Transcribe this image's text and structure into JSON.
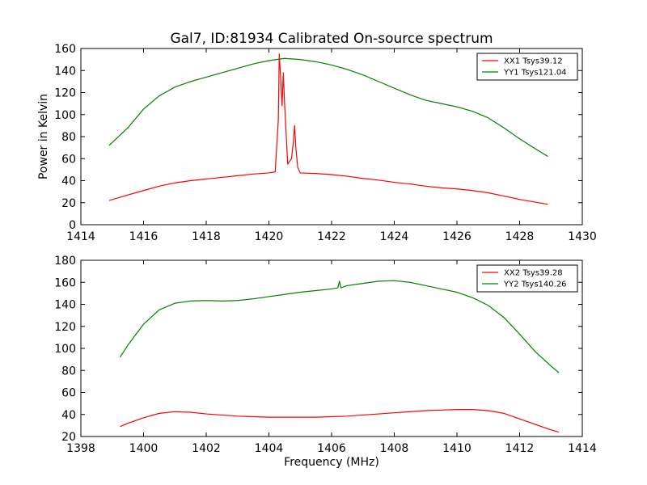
{
  "title": "Gal7, ID:81934 Calibrated On-source spectrum",
  "ylabel": "Power in Kelvin",
  "xlabel": "Frequency (MHz)",
  "colors": {
    "red": "#ff0000",
    "green": "#008000"
  },
  "chart_data": [
    {
      "type": "line",
      "title": "Gal7, ID:81934 Calibrated On-source spectrum",
      "xlabel": "",
      "ylabel": "Power in Kelvin",
      "xlim": [
        1414,
        1430
      ],
      "ylim": [
        0,
        160
      ],
      "xticks": [
        1414,
        1416,
        1418,
        1420,
        1422,
        1424,
        1426,
        1428,
        1430
      ],
      "yticks": [
        0,
        20,
        40,
        60,
        80,
        100,
        120,
        140,
        160
      ],
      "legend_position": "top-right",
      "series": [
        {
          "name": "XX1 Tsys39.12",
          "color": "#ff0000",
          "x": [
            1414.9,
            1415.5,
            1416,
            1416.5,
            1417,
            1417.5,
            1418,
            1418.5,
            1419,
            1419.5,
            1420,
            1420.2,
            1420.3,
            1420.33,
            1420.38,
            1420.42,
            1420.46,
            1420.5,
            1420.6,
            1420.72,
            1420.78,
            1420.82,
            1420.86,
            1420.92,
            1421,
            1421.5,
            1422,
            1422.5,
            1423,
            1423.5,
            1424,
            1424.5,
            1425,
            1425.5,
            1426,
            1426.5,
            1427,
            1427.5,
            1428,
            1428.5,
            1428.9
          ],
          "y": [
            22,
            27,
            31,
            35,
            38,
            40,
            41.5,
            43,
            44.5,
            46,
            47,
            48,
            95,
            155,
            130,
            108,
            138,
            110,
            55,
            60,
            75,
            90,
            70,
            52,
            47,
            46.5,
            45.5,
            44,
            42,
            40.5,
            38.5,
            37,
            35,
            33.5,
            32.5,
            31,
            29,
            26,
            23,
            20.5,
            18.5
          ]
        },
        {
          "name": "YY1 Tsys121.04",
          "color": "#008000",
          "x": [
            1414.9,
            1415.5,
            1416,
            1416.5,
            1417,
            1417.5,
            1418,
            1418.5,
            1419,
            1419.5,
            1420,
            1420.5,
            1421,
            1421.5,
            1422,
            1422.5,
            1423,
            1423.5,
            1424,
            1424.5,
            1425,
            1425.5,
            1426,
            1426.5,
            1427,
            1427.5,
            1428,
            1428.5,
            1428.9
          ],
          "y": [
            72,
            88,
            105,
            117,
            125,
            130,
            134,
            138,
            142,
            146,
            149,
            151,
            150,
            148,
            145,
            141,
            136,
            130,
            124,
            118,
            113,
            110,
            107,
            103,
            97,
            88,
            78,
            69,
            62
          ]
        }
      ]
    },
    {
      "type": "line",
      "title": "",
      "xlabel": "Frequency (MHz)",
      "ylabel": "",
      "xlim": [
        1398,
        1414
      ],
      "ylim": [
        20,
        180
      ],
      "xticks": [
        1398,
        1400,
        1402,
        1404,
        1406,
        1408,
        1410,
        1412,
        1414
      ],
      "yticks": [
        20,
        40,
        60,
        80,
        100,
        120,
        140,
        160,
        180
      ],
      "legend_position": "top-right",
      "series": [
        {
          "name": "XX2 Tsys39.28",
          "color": "#ff0000",
          "x": [
            1399.25,
            1399.5,
            1400,
            1400.5,
            1401,
            1401.5,
            1402,
            1402.5,
            1403,
            1403.5,
            1404,
            1404.5,
            1405,
            1405.5,
            1406,
            1406.5,
            1407,
            1407.5,
            1408,
            1408.5,
            1409,
            1409.5,
            1410,
            1410.5,
            1411,
            1411.5,
            1412,
            1412.5,
            1413,
            1413.25
          ],
          "y": [
            29,
            32,
            37,
            41,
            42.5,
            42,
            40.5,
            39.5,
            38.5,
            38,
            37.5,
            37.5,
            37.5,
            37.5,
            38,
            38.5,
            39.5,
            40.5,
            41.5,
            42.5,
            43.5,
            44,
            44.5,
            44.5,
            43.5,
            41,
            36,
            31,
            26,
            24
          ]
        },
        {
          "name": "YY2 Tsys140.26",
          "color": "#008000",
          "x": [
            1399.25,
            1399.5,
            1400,
            1400.5,
            1401,
            1401.5,
            1402,
            1402.5,
            1403,
            1403.5,
            1404,
            1404.5,
            1405,
            1405.5,
            1406,
            1406.2,
            1406.25,
            1406.3,
            1406.5,
            1407,
            1407.5,
            1408,
            1408.5,
            1409,
            1409.5,
            1410,
            1410.5,
            1411,
            1411.5,
            1412,
            1412.5,
            1413,
            1413.25
          ],
          "y": [
            92,
            103,
            122,
            135,
            141,
            143,
            143.5,
            143,
            143.5,
            145,
            147,
            149,
            151,
            152.5,
            154,
            155,
            161,
            155,
            157,
            159,
            161,
            161.5,
            160,
            157,
            154,
            151,
            146,
            139,
            128,
            113,
            97,
            84,
            78
          ]
        }
      ]
    }
  ]
}
